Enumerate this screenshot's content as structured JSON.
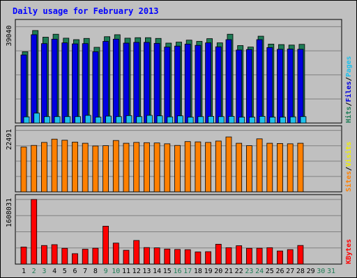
{
  "chart_data": {
    "type": "bar",
    "title": "Daily usage for February 2013",
    "days": [
      "1",
      "2",
      "3",
      "4",
      "5",
      "6",
      "7",
      "8",
      "9",
      "10",
      "11",
      "12",
      "13",
      "14",
      "15",
      "16",
      "17",
      "18",
      "19",
      "20",
      "21",
      "22",
      "23",
      "24",
      "25",
      "26",
      "27",
      "28",
      "29",
      "30",
      "31"
    ],
    "weekend_days": [
      "2",
      "3",
      "9",
      "10",
      "16",
      "17",
      "23",
      "24",
      "30",
      "31"
    ],
    "panels": [
      {
        "name": "hits-files-pages",
        "max_label": "39040",
        "max_value": 39040,
        "series": [
          {
            "name": "Hits",
            "color": "#1e7c56",
            "values": [
              28900,
              37500,
              34800,
              36000,
              34400,
              33800,
              34300,
              30700,
              35000,
              35800,
              34400,
              34600,
              34600,
              34300,
              32400,
              32800,
              33600,
              33100,
              34200,
              32500,
              36000,
              31400,
              30800,
              35200,
              32000,
              31800,
              31600,
              31900
            ]
          },
          {
            "name": "Files",
            "color": "#0000e0",
            "values": [
              27600,
              35800,
              32200,
              34000,
              32500,
              32100,
              32200,
              28900,
              33100,
              34000,
              32400,
              32700,
              32700,
              32300,
              30800,
              31200,
              32000,
              31500,
              32500,
              30900,
              33800,
              29600,
              29800,
              33800,
              30600,
              29900,
              30000,
              29900
            ]
          },
          {
            "name": "Pages",
            "color": "#1ec1ec",
            "values": [
              2500,
              4000,
              2600,
              2600,
              2600,
              2600,
              3100,
              2400,
              2800,
              2600,
              3000,
              2600,
              3100,
              2900,
              2500,
              2900,
              2400,
              2600,
              2700,
              2600,
              2700,
              2400,
              2400,
              2700,
              2400,
              2400,
              2500,
              2600
            ]
          }
        ],
        "legend": [
          "Hits",
          "/",
          "Files",
          "/",
          "Pages"
        ],
        "legend_colors": [
          "#1e7c56",
          "#000000",
          "#0000e0",
          "#000000",
          "#1ec1ec"
        ]
      },
      {
        "name": "visits-sites",
        "max_label": "22491",
        "max_value": 22491,
        "series": [
          {
            "name": "Visits",
            "color": "#f0f000",
            "values": [
              0,
              0,
              0,
              0,
              0,
              0,
              0,
              0,
              0,
              0,
              0,
              0,
              0,
              0,
              0,
              0,
              0,
              0,
              0,
              0,
              0,
              0,
              0,
              0,
              0,
              0,
              0,
              0
            ]
          },
          {
            "name": "Sites",
            "color": "#ff8000",
            "values": [
              16400,
              17000,
              18100,
              19300,
              18900,
              18200,
              17800,
              16800,
              16900,
              18800,
              17800,
              18100,
              18000,
              17900,
              17600,
              17000,
              18400,
              18300,
              18100,
              18600,
              20100,
              17800,
              16900,
              19400,
              17800,
              17700,
              17600,
              17800
            ]
          }
        ],
        "legend": [
          "Sites",
          "/",
          "Visits"
        ],
        "legend_colors": [
          "#ff8000",
          "#000000",
          "#f0f000"
        ]
      },
      {
        "name": "kbytes",
        "max_label": "1608031",
        "max_value": 1608031,
        "series": [
          {
            "name": "KBytes",
            "color": "#ff0000",
            "values": [
              425000,
              1608031,
              463000,
              484000,
              394000,
              260000,
              371000,
              396000,
              944000,
              523000,
              344000,
              588000,
              412000,
              405000,
              375000,
              365000,
              359000,
              303000,
              309000,
              495000,
              409000,
              458000,
              394000,
              396000,
              409000,
              327000,
              361000,
              464000
            ]
          }
        ],
        "legend": [
          "KBytes"
        ],
        "legend_colors": [
          "#ff0000"
        ]
      }
    ],
    "colors": {
      "background": "#ffffff",
      "frame": "#c0c0c0",
      "grid": "#808080",
      "title": "#0000ff",
      "weekday_label": "#000000",
      "weekend_label": "#1e7c56"
    }
  }
}
